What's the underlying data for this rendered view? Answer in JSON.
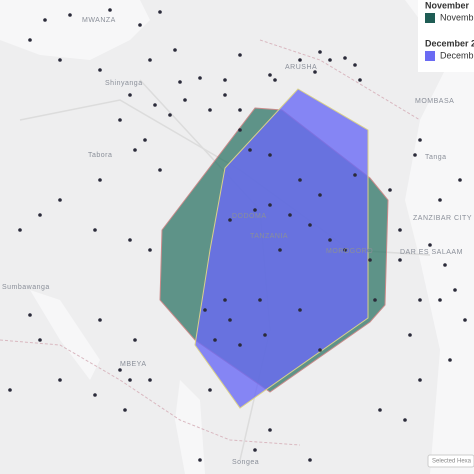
{
  "map": {
    "places": [
      "MWANZA",
      "Shinyanga",
      "Tabora",
      "ARUSHA",
      "MOMBASA",
      "Tanga",
      "ZANZIBAR CITY",
      "DAR ES SALAAM",
      "Sumbawanga",
      "MBEYA",
      "Songea",
      "DODOMA",
      "TANZANIA",
      "MOROGORO"
    ]
  },
  "legend": {
    "groups": [
      {
        "title": "November",
        "item": "Novemb"
      },
      {
        "title": "December 2",
        "item": "Decemb"
      }
    ]
  },
  "button": "Selected Hexa"
}
